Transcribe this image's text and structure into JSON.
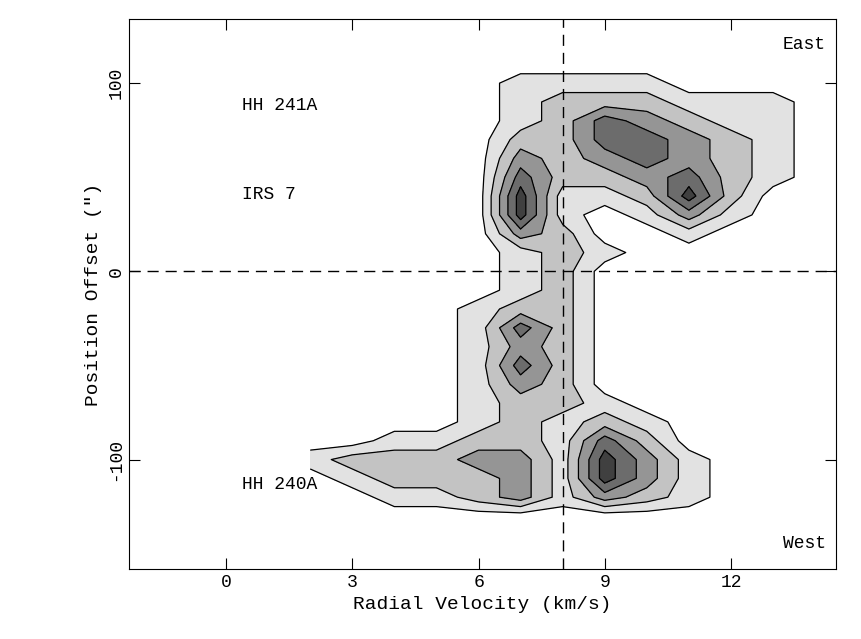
{
  "chart_data": {
    "type": "contour",
    "xlabel": "Radial Velocity (km/s)",
    "ylabel": "Position Offset (\")",
    "xlim": [
      -2.3,
      14.5
    ],
    "ylim": [
      -158,
      134
    ],
    "xticks": [
      0,
      3,
      6,
      9,
      12
    ],
    "yticks": [
      -100,
      0,
      100
    ],
    "x": [
      2,
      3,
      4,
      5,
      6,
      7,
      8,
      9,
      10,
      11,
      12,
      13,
      14
    ],
    "y": [
      110,
      100,
      90,
      80,
      70,
      60,
      50,
      40,
      30,
      20,
      10,
      0,
      -10,
      -20,
      -30,
      -40,
      -50,
      -60,
      -70,
      -80,
      -90,
      -100,
      -110,
      -120,
      -130
    ],
    "cells": [
      [
        0,
        0,
        0,
        0,
        0,
        0,
        0,
        0,
        0,
        0,
        0,
        0,
        0
      ],
      [
        0,
        0,
        0,
        0,
        0,
        1,
        1,
        1,
        1,
        0,
        0,
        0,
        0
      ],
      [
        0,
        0,
        0,
        0,
        0,
        1,
        2,
        2,
        2,
        1,
        1,
        1,
        0
      ],
      [
        0,
        0,
        0,
        0,
        0,
        1,
        2,
        4,
        3,
        2,
        1,
        1,
        0
      ],
      [
        0,
        0,
        0,
        0,
        0,
        2,
        2,
        4,
        4,
        3,
        2,
        1,
        0
      ],
      [
        0,
        0,
        0,
        0,
        0,
        3,
        2,
        3,
        4,
        3,
        2,
        1,
        0
      ],
      [
        0,
        0,
        0,
        0,
        0,
        4,
        2,
        2,
        3,
        4,
        2,
        1,
        0
      ],
      [
        0,
        0,
        0,
        0,
        0,
        5,
        1,
        1,
        2,
        5,
        2,
        0,
        0
      ],
      [
        0,
        0,
        0,
        0,
        0,
        5,
        1,
        0,
        1,
        3,
        1,
        0,
        0
      ],
      [
        0,
        0,
        0,
        0,
        0,
        3,
        2,
        0,
        0,
        1,
        0,
        0,
        0
      ],
      [
        0,
        0,
        0,
        0,
        0,
        1,
        2,
        1,
        0,
        0,
        0,
        0,
        0
      ],
      [
        0,
        0,
        0,
        0,
        0,
        1,
        2,
        0,
        0,
        0,
        0,
        0,
        0
      ],
      [
        0,
        0,
        0,
        0,
        0,
        1,
        2,
        0,
        0,
        0,
        0,
        0,
        0
      ],
      [
        0,
        0,
        0,
        0,
        1,
        2,
        2,
        0,
        0,
        0,
        0,
        0,
        0
      ],
      [
        0,
        0,
        0,
        0,
        1,
        4,
        2,
        0,
        0,
        0,
        0,
        0,
        0
      ],
      [
        0,
        0,
        0,
        0,
        1,
        3,
        2,
        0,
        0,
        0,
        0,
        0,
        0
      ],
      [
        0,
        0,
        0,
        0,
        1,
        4,
        2,
        0,
        0,
        0,
        0,
        0,
        0
      ],
      [
        0,
        0,
        0,
        0,
        1,
        3,
        2,
        0,
        0,
        0,
        0,
        0,
        0
      ],
      [
        0,
        0,
        0,
        0,
        1,
        2,
        2,
        1,
        0,
        0,
        0,
        0,
        0
      ],
      [
        0,
        0,
        0,
        0,
        1,
        2,
        1,
        2,
        1,
        0,
        0,
        0,
        0
      ],
      [
        0,
        0,
        1,
        1,
        2,
        2,
        1,
        4,
        2,
        0,
        0,
        0,
        0
      ],
      [
        1,
        2,
        2,
        2,
        3,
        3,
        1,
        5,
        3,
        1,
        0,
        0,
        0
      ],
      [
        0,
        1,
        2,
        2,
        2,
        3,
        1,
        5,
        3,
        1,
        0,
        0,
        0
      ],
      [
        0,
        0,
        1,
        1,
        2,
        3,
        1,
        3,
        2,
        1,
        0,
        0,
        0
      ],
      [
        0,
        0,
        0,
        0,
        0,
        0,
        0,
        0,
        0,
        0,
        0,
        0,
        0
      ]
    ],
    "levels": [
      0.5,
      1.5,
      2.5,
      3.5,
      4.5,
      5.5
    ],
    "color": "#000000",
    "reference_lines": {
      "x": [
        8
      ],
      "y": [
        0
      ]
    },
    "annotations": [
      {
        "text": "HH 241A",
        "y": 88
      },
      {
        "text": "IRS 7",
        "y": 41
      },
      {
        "text": "HH 240A",
        "y": -113
      }
    ],
    "corner_labels": {
      "top": "East",
      "bottom": "West"
    }
  }
}
